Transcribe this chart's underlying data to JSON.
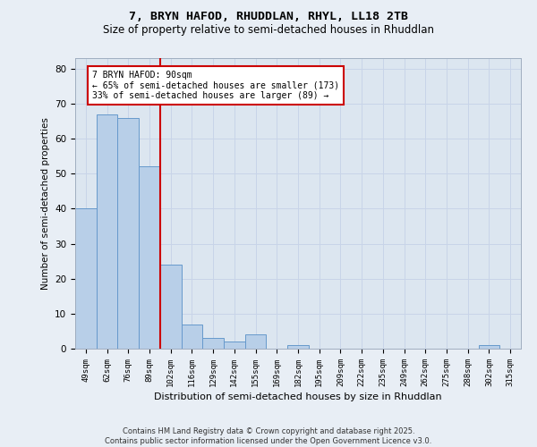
{
  "title1": "7, BRYN HAFOD, RHUDDLAN, RHYL, LL18 2TB",
  "title2": "Size of property relative to semi-detached houses in Rhuddlan",
  "xlabel": "Distribution of semi-detached houses by size in Rhuddlan",
  "ylabel": "Number of semi-detached properties",
  "categories": [
    "49sqm",
    "62sqm",
    "76sqm",
    "89sqm",
    "102sqm",
    "116sqm",
    "129sqm",
    "142sqm",
    "155sqm",
    "169sqm",
    "182sqm",
    "195sqm",
    "209sqm",
    "222sqm",
    "235sqm",
    "249sqm",
    "262sqm",
    "275sqm",
    "288sqm",
    "302sqm",
    "315sqm"
  ],
  "values": [
    40,
    67,
    66,
    52,
    24,
    7,
    3,
    2,
    4,
    0,
    1,
    0,
    0,
    0,
    0,
    0,
    0,
    0,
    0,
    1,
    0
  ],
  "bar_color": "#b8cfe8",
  "bar_edge_color": "#6699cc",
  "vline_x_index": 3,
  "annotation_line1": "7 BRYN HAFOD: 90sqm",
  "annotation_line2": "← 65% of semi-detached houses are smaller (173)",
  "annotation_line3": "33% of semi-detached houses are larger (89) →",
  "annotation_box_facecolor": "#ffffff",
  "annotation_box_edgecolor": "#cc0000",
  "vline_color": "#cc0000",
  "ylim": [
    0,
    83
  ],
  "yticks": [
    0,
    10,
    20,
    30,
    40,
    50,
    60,
    70,
    80
  ],
  "grid_color": "#c8d4e8",
  "background_color": "#dce6f0",
  "fig_facecolor": "#e8eef5",
  "footer1": "Contains HM Land Registry data © Crown copyright and database right 2025.",
  "footer2": "Contains public sector information licensed under the Open Government Licence v3.0."
}
